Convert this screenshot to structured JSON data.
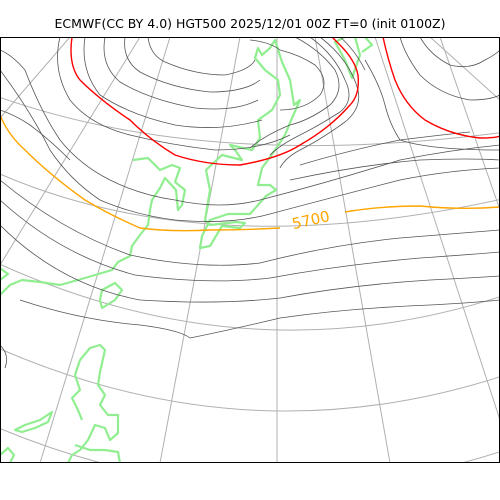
{
  "title": "ECMWF(CC BY 4.0) HGT500 2025/12/01 00Z FT=0 (init 0100Z)",
  "contour_label": "5700",
  "colors": {
    "contour": "#555555",
    "contour_highlight": "#ff0000",
    "contour_5700": "#ffa500",
    "coastline": "#90ee90",
    "graticule": "#b0b0b0",
    "frame": "#000000"
  }
}
